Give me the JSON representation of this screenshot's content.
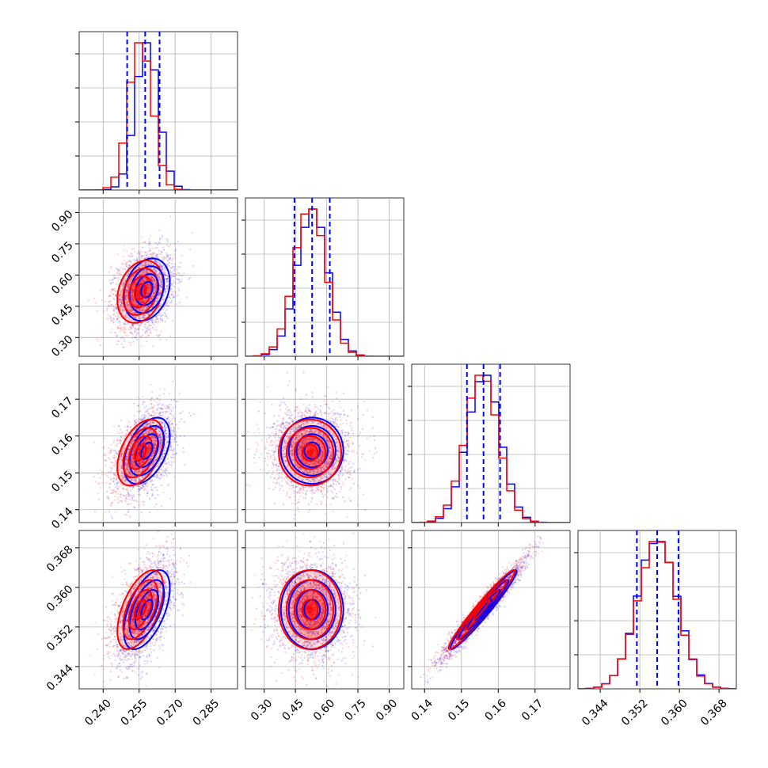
{
  "chart_data": {
    "type": "corner",
    "title": "",
    "grid": true,
    "colors": {
      "blue": "#0000ff",
      "red": "#ff0000",
      "fill_red": "#ff0000"
    },
    "series": [
      {
        "color": "blue",
        "means": [
          0.2582,
          0.53,
          0.156,
          0.3555
        ],
        "sigmas": [
          0.0048,
          0.075,
          0.0045,
          0.004
        ]
      },
      {
        "color": "red",
        "means": [
          0.2555,
          0.52,
          0.1555,
          0.3555
        ],
        "sigmas": [
          0.0048,
          0.075,
          0.0045,
          0.004
        ]
      }
    ],
    "correlations": {
      "0-1": 0.25,
      "0-2": 0.45,
      "0-3": 0.55,
      "1-2": 0.0,
      "1-3": 0.0,
      "2-3": 0.97
    },
    "quantile_lines": {
      "color": "blue",
      "values": [
        [
          0.25,
          0.2575,
          0.2635
        ],
        [
          0.445,
          0.53,
          0.615
        ],
        [
          0.1515,
          0.156,
          0.1605
        ],
        [
          0.3514,
          0.3555,
          0.3598
        ]
      ]
    },
    "axes": [
      {
        "range": [
          0.23,
          0.296
        ],
        "ticks": [
          0.24,
          0.255,
          0.27,
          0.285
        ],
        "tick_labels": [
          "0.240",
          "0.255",
          "0.270",
          "0.285"
        ]
      },
      {
        "range": [
          0.21,
          0.97
        ],
        "ticks": [
          0.3,
          0.45,
          0.6,
          0.75,
          0.9
        ],
        "tick_labels": [
          "0.30",
          "0.45",
          "0.60",
          "0.75",
          "0.90"
        ]
      },
      {
        "range": [
          0.1365,
          0.1795
        ],
        "ticks": [
          0.14,
          0.15,
          0.16,
          0.17
        ],
        "tick_labels": [
          "0.14",
          "0.15",
          "0.16",
          "0.17"
        ]
      },
      {
        "range": [
          0.3395,
          0.3715
        ],
        "ticks": [
          0.344,
          0.352,
          0.36,
          0.368
        ],
        "tick_labels": [
          "0.344",
          "0.352",
          "0.360",
          "0.368"
        ]
      }
    ],
    "histogram_bins": 20
  }
}
